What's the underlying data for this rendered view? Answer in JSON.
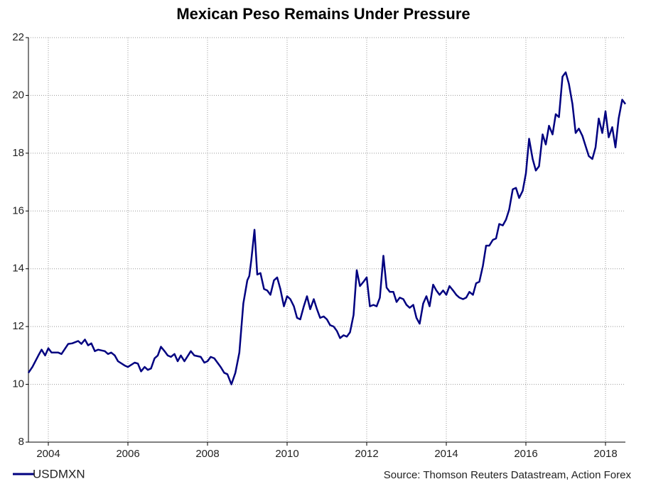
{
  "chart_data": {
    "type": "line",
    "title": "Mexican Peso Remains Under Pressure",
    "source": "Source: Thomson Reuters Datastream, Action Forex",
    "x": [
      2003.5,
      2003.6,
      2003.75,
      2003.83,
      2003.92,
      2004.0,
      2004.08,
      2004.25,
      2004.33,
      2004.5,
      2004.6,
      2004.75,
      2004.83,
      2004.92,
      2005.0,
      2005.08,
      2005.17,
      2005.25,
      2005.42,
      2005.5,
      2005.58,
      2005.67,
      2005.75,
      2005.92,
      2006.0,
      2006.17,
      2006.25,
      2006.33,
      2006.42,
      2006.5,
      2006.58,
      2006.67,
      2006.75,
      2006.83,
      2006.92,
      2007.0,
      2007.08,
      2007.17,
      2007.25,
      2007.33,
      2007.42,
      2007.58,
      2007.67,
      2007.83,
      2007.92,
      2008.0,
      2008.08,
      2008.17,
      2008.25,
      2008.33,
      2008.42,
      2008.5,
      2008.6,
      2008.7,
      2008.8,
      2008.9,
      2009.0,
      2009.05,
      2009.1,
      2009.18,
      2009.25,
      2009.33,
      2009.42,
      2009.5,
      2009.58,
      2009.67,
      2009.75,
      2009.83,
      2009.92,
      2010.0,
      2010.08,
      2010.17,
      2010.25,
      2010.33,
      2010.42,
      2010.5,
      2010.58,
      2010.67,
      2010.75,
      2010.83,
      2010.92,
      2011.0,
      2011.08,
      2011.17,
      2011.25,
      2011.33,
      2011.42,
      2011.5,
      2011.58,
      2011.67,
      2011.75,
      2011.83,
      2011.92,
      2012.0,
      2012.08,
      2012.17,
      2012.25,
      2012.33,
      2012.42,
      2012.5,
      2012.58,
      2012.67,
      2012.75,
      2012.83,
      2012.92,
      2013.0,
      2013.08,
      2013.17,
      2013.25,
      2013.33,
      2013.42,
      2013.5,
      2013.58,
      2013.67,
      2013.75,
      2013.83,
      2013.92,
      2014.0,
      2014.08,
      2014.17,
      2014.25,
      2014.33,
      2014.42,
      2014.5,
      2014.58,
      2014.67,
      2014.75,
      2014.83,
      2014.92,
      2015.0,
      2015.08,
      2015.17,
      2015.25,
      2015.33,
      2015.42,
      2015.5,
      2015.58,
      2015.67,
      2015.75,
      2015.83,
      2015.92,
      2016.0,
      2016.08,
      2016.17,
      2016.25,
      2016.33,
      2016.42,
      2016.5,
      2016.58,
      2016.67,
      2016.75,
      2016.83,
      2016.92,
      2017.0,
      2017.08,
      2017.17,
      2017.25,
      2017.33,
      2017.42,
      2017.5,
      2017.58,
      2017.67,
      2017.75,
      2017.83,
      2017.92,
      2018.0,
      2018.08,
      2018.17,
      2018.25,
      2018.33,
      2018.42,
      2018.5
    ],
    "series": [
      {
        "name": "USDMXN",
        "color": "#000080",
        "values": [
          10.4,
          10.6,
          11.0,
          11.2,
          11.0,
          11.25,
          11.1,
          11.1,
          11.05,
          11.4,
          11.42,
          11.5,
          11.4,
          11.55,
          11.35,
          11.42,
          11.15,
          11.2,
          11.15,
          11.05,
          11.1,
          11.0,
          10.8,
          10.65,
          10.6,
          10.75,
          10.72,
          10.45,
          10.6,
          10.5,
          10.55,
          10.9,
          11.0,
          11.3,
          11.15,
          11.0,
          10.95,
          11.05,
          10.8,
          11.0,
          10.8,
          11.15,
          11.0,
          10.95,
          10.75,
          10.8,
          10.95,
          10.9,
          10.75,
          10.6,
          10.4,
          10.35,
          10.0,
          10.4,
          11.1,
          12.8,
          13.6,
          13.75,
          14.3,
          15.35,
          13.8,
          13.85,
          13.3,
          13.25,
          13.1,
          13.6,
          13.7,
          13.3,
          12.7,
          13.05,
          12.95,
          12.7,
          12.3,
          12.25,
          12.7,
          13.05,
          12.6,
          12.95,
          12.6,
          12.3,
          12.35,
          12.25,
          12.05,
          12.0,
          11.85,
          11.6,
          11.7,
          11.65,
          11.8,
          12.4,
          13.95,
          13.4,
          13.55,
          13.7,
          12.7,
          12.75,
          12.7,
          13.0,
          14.45,
          13.35,
          13.2,
          13.2,
          12.85,
          13.0,
          12.95,
          12.75,
          12.65,
          12.75,
          12.3,
          12.1,
          12.8,
          13.05,
          12.7,
          13.45,
          13.25,
          13.1,
          13.25,
          13.1,
          13.4,
          13.25,
          13.1,
          13.0,
          12.95,
          13.0,
          13.2,
          13.1,
          13.5,
          13.55,
          14.1,
          14.8,
          14.8,
          15.0,
          15.05,
          15.55,
          15.5,
          15.7,
          16.05,
          16.75,
          16.8,
          16.45,
          16.7,
          17.3,
          18.5,
          17.8,
          17.4,
          17.55,
          18.65,
          18.3,
          18.95,
          18.65,
          19.35,
          19.25,
          20.65,
          20.8,
          20.4,
          19.7,
          18.7,
          18.85,
          18.6,
          18.25,
          17.9,
          17.8,
          18.2,
          19.2,
          18.7,
          19.45,
          18.55,
          18.9,
          18.2,
          19.2,
          19.85,
          19.7
        ]
      }
    ],
    "xlim": [
      2003.5,
      2018.5
    ],
    "xticks": [
      2004,
      2006,
      2008,
      2010,
      2012,
      2014,
      2016,
      2018
    ],
    "ylim": [
      8,
      22
    ],
    "yticks": [
      8,
      10,
      12,
      14,
      16,
      18,
      20,
      22
    ],
    "grid": true
  }
}
